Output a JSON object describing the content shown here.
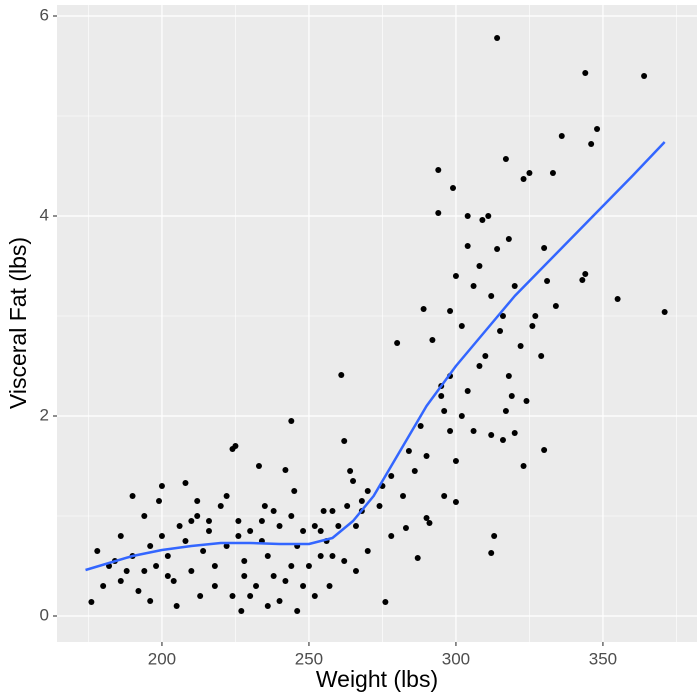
{
  "chart_data": {
    "type": "scatter",
    "x_label": "Weight (lbs)",
    "y_label": "Visceral Fat (lbs)",
    "xlim": [
      164.3,
      382
    ],
    "ylim": [
      -0.26,
      6.11
    ],
    "xticks": [
      200,
      250,
      300,
      350
    ],
    "yticks": [
      0,
      2,
      4,
      6
    ],
    "grid": true,
    "minor_grid": true,
    "color": "#000000",
    "x": [
      314,
      344,
      364,
      348,
      346,
      336,
      333,
      323,
      325,
      317,
      294,
      299,
      371,
      355,
      344,
      343,
      330,
      294,
      304,
      309,
      311,
      318,
      314,
      261,
      244,
      280,
      292,
      289,
      312,
      313,
      330,
      323,
      278,
      287,
      291,
      276,
      176,
      225,
      224,
      233,
      242,
      200,
      208,
      283,
      290,
      296,
      300,
      306,
      312,
      316,
      320,
      302,
      304,
      298,
      295,
      290,
      286,
      284,
      300,
      298,
      296,
      308,
      310,
      318,
      322,
      326,
      316,
      320,
      306,
      302,
      300,
      304,
      308,
      312,
      315,
      327,
      331,
      334,
      329,
      319,
      317,
      324,
      298,
      295,
      288,
      282,
      278,
      275,
      270,
      268,
      265,
      263,
      260,
      258,
      262,
      264,
      256,
      254,
      252,
      250,
      248,
      246,
      244,
      242,
      240,
      238,
      236,
      234,
      232,
      230,
      228,
      226,
      224,
      222,
      220,
      218,
      216,
      214,
      212,
      210,
      208,
      206,
      204,
      202,
      200,
      198,
      196,
      194,
      192,
      190,
      188,
      186,
      184,
      182,
      180,
      178,
      196,
      205,
      213,
      227,
      236,
      246,
      252,
      257,
      266,
      270,
      240,
      230,
      218,
      210,
      245,
      255,
      235,
      222,
      212,
      199,
      190,
      266,
      262,
      248,
      238,
      228,
      202,
      194,
      186,
      216,
      226,
      234,
      244,
      254,
      258,
      268,
      274
    ],
    "values": [
      5.78,
      5.43,
      5.4,
      4.87,
      4.72,
      4.8,
      4.43,
      4.37,
      4.43,
      4.57,
      4.46,
      4.28,
      3.04,
      3.17,
      3.42,
      3.36,
      3.68,
      4.03,
      4.0,
      3.96,
      4.0,
      3.77,
      3.67,
      2.41,
      1.95,
      2.73,
      2.76,
      3.07,
      0.63,
      0.8,
      1.66,
      1.5,
      0.8,
      0.58,
      0.93,
      0.14,
      0.14,
      1.7,
      1.67,
      1.5,
      1.46,
      1.3,
      1.33,
      0.88,
      0.98,
      1.2,
      1.14,
      1.85,
      1.81,
      1.76,
      1.83,
      2.0,
      2.25,
      2.4,
      2.3,
      1.6,
      1.45,
      1.65,
      1.55,
      1.85,
      2.05,
      2.5,
      2.6,
      2.4,
      2.7,
      2.9,
      3.0,
      3.3,
      3.3,
      2.9,
      3.4,
      3.7,
      3.5,
      3.2,
      2.85,
      3.0,
      3.35,
      3.1,
      2.6,
      2.2,
      2.05,
      2.15,
      3.05,
      2.2,
      1.9,
      1.2,
      1.4,
      1.3,
      1.25,
      1.05,
      1.35,
      1.1,
      0.9,
      1.05,
      1.75,
      1.45,
      0.75,
      0.6,
      0.9,
      0.5,
      0.85,
      0.7,
      0.5,
      0.35,
      0.9,
      1.05,
      0.6,
      0.75,
      0.3,
      0.85,
      0.55,
      0.95,
      0.2,
      0.7,
      1.1,
      0.5,
      0.85,
      0.65,
      1.0,
      0.45,
      0.75,
      0.9,
      0.35,
      0.6,
      0.8,
      0.5,
      0.7,
      1.0,
      0.25,
      0.6,
      0.45,
      0.8,
      0.55,
      0.5,
      0.3,
      0.65,
      0.15,
      0.1,
      0.2,
      0.05,
      0.1,
      0.05,
      0.2,
      0.3,
      0.45,
      0.65,
      0.15,
      0.2,
      0.3,
      0.95,
      1.25,
      1.05,
      1.1,
      1.2,
      1.15,
      1.15,
      1.2,
      0.9,
      0.55,
      0.3,
      0.4,
      0.4,
      0.4,
      0.45,
      0.35,
      0.95,
      0.8,
      0.95,
      1.0,
      0.85,
      0.6,
      1.15,
      1.1
    ],
    "smooth": {
      "color": "#3366ff",
      "x": [
        174,
        190,
        200,
        210,
        220,
        230,
        240,
        250,
        258,
        265,
        272,
        280,
        290,
        300,
        310,
        320,
        330,
        340,
        350,
        360,
        371
      ],
      "values": [
        0.46,
        0.6,
        0.66,
        0.7,
        0.73,
        0.73,
        0.72,
        0.72,
        0.78,
        0.95,
        1.2,
        1.6,
        2.1,
        2.5,
        2.85,
        3.2,
        3.5,
        3.8,
        4.1,
        4.4,
        4.74
      ]
    }
  }
}
